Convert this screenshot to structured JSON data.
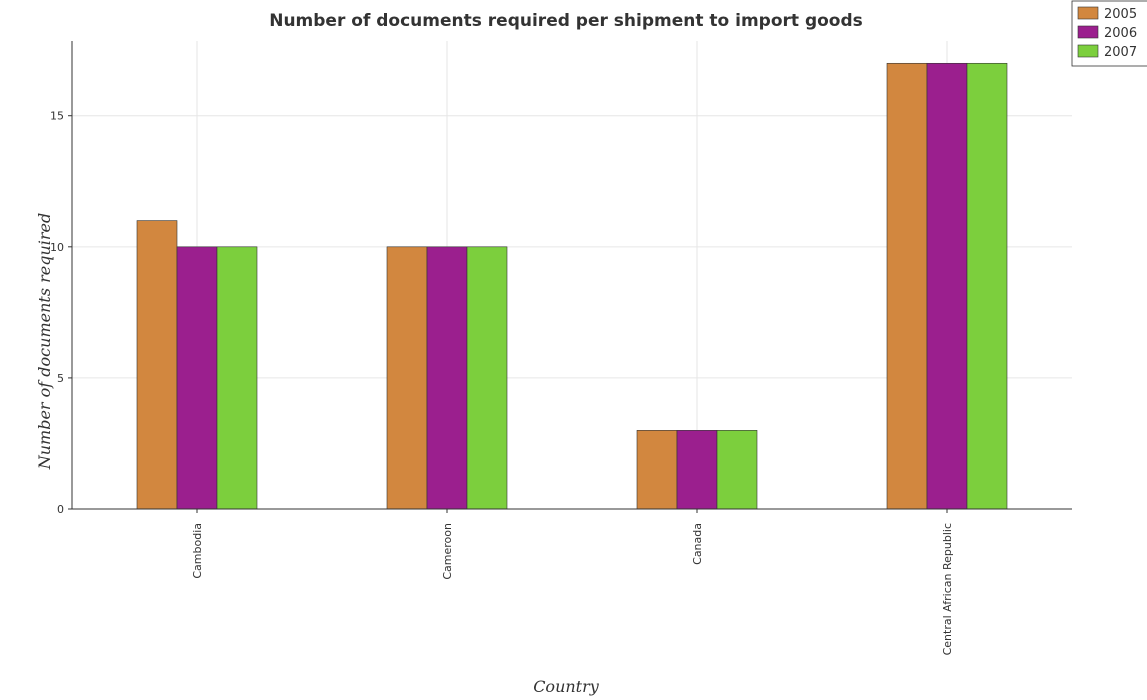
{
  "chart_data": {
    "type": "bar",
    "title": "Number of documents required per shipment to import goods",
    "xlabel": "Country",
    "ylabel": "Number of documents required",
    "categories": [
      "Cambodia",
      "Cameroon",
      "Canada",
      "Central African Republic"
    ],
    "series": [
      {
        "name": "2005",
        "color": "#d2873f",
        "values": [
          11,
          10,
          3,
          17
        ]
      },
      {
        "name": "2006",
        "color": "#9b1f8e",
        "values": [
          10,
          10,
          3,
          17
        ]
      },
      {
        "name": "2007",
        "color": "#7ccf3d",
        "values": [
          10,
          10,
          3,
          17
        ]
      }
    ],
    "yticks": [
      0,
      5,
      10,
      15
    ],
    "ylim": [
      0,
      17.85
    ],
    "grid": true,
    "legend_position": "top-right"
  }
}
